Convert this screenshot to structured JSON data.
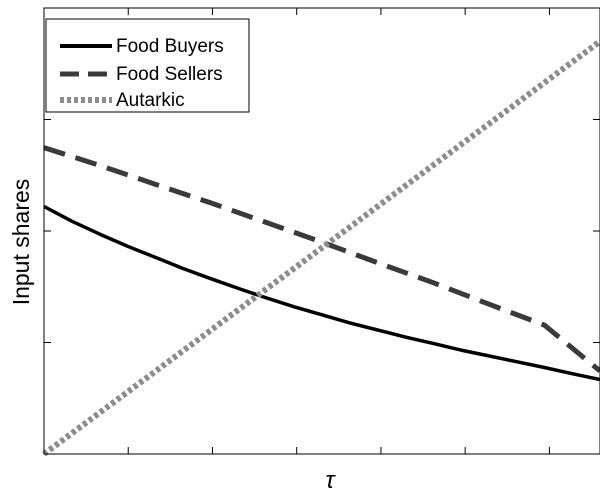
{
  "chart_data": {
    "type": "line",
    "title": "",
    "xlabel": "τ",
    "ylabel": "Input shares",
    "xlim": [
      0,
      1
    ],
    "ylim": [
      0,
      1
    ],
    "x_tick_positions": [
      0,
      0.1515,
      0.303,
      0.4545,
      0.606,
      0.7575,
      0.909
    ],
    "y_tick_positions": [
      0,
      0.25,
      0.5,
      0.75,
      1
    ],
    "tick_labels_shown": false,
    "grid": false,
    "legend_position": "top-left",
    "series": [
      {
        "name": "Food Buyers",
        "style": "solid",
        "color": "#000000",
        "x": [
          0,
          0.05,
          0.1,
          0.15,
          0.2,
          0.25,
          0.3,
          0.35,
          0.4,
          0.45,
          0.5,
          0.55,
          0.6,
          0.65,
          0.7,
          0.75,
          0.8,
          0.85,
          0.9,
          0.95,
          1
        ],
        "y": [
          0.555,
          0.522,
          0.493,
          0.466,
          0.441,
          0.416,
          0.393,
          0.371,
          0.35,
          0.33,
          0.312,
          0.294,
          0.278,
          0.262,
          0.248,
          0.233,
          0.22,
          0.207,
          0.194,
          0.18,
          0.167
        ]
      },
      {
        "name": "Food Sellers",
        "style": "dashed",
        "color": "#3a3a3a",
        "x": [
          0,
          0.1,
          0.2,
          0.3,
          0.4,
          0.5,
          0.6,
          0.7,
          0.8,
          0.9,
          1
        ],
        "y": [
          0.687,
          0.647,
          0.605,
          0.563,
          0.519,
          0.475,
          0.429,
          0.384,
          0.336,
          0.289,
          0.186
        ]
      },
      {
        "name": "Autarkic",
        "style": "dotted",
        "color": "#8c8c8c",
        "x": [
          0,
          1
        ],
        "y": [
          0,
          0.925
        ]
      }
    ]
  }
}
